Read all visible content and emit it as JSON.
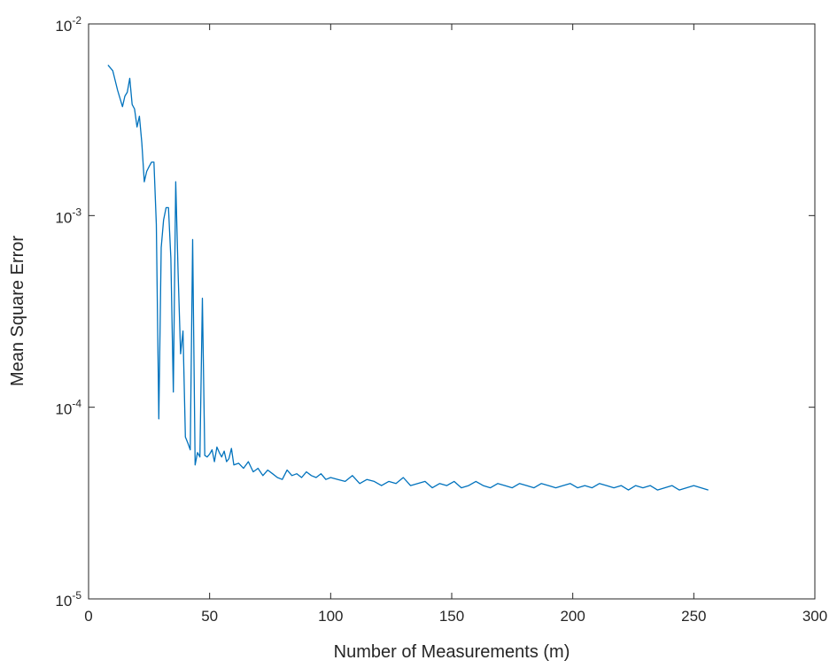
{
  "chart_data": {
    "type": "line",
    "title": "",
    "xlabel": "Number of Measurements (m)",
    "ylabel": "Mean Square Error",
    "xlim": [
      0,
      300
    ],
    "ylim": [
      1e-05,
      0.01
    ],
    "yscale": "log",
    "grid": false,
    "legend": "none",
    "x_ticks": [
      0,
      50,
      100,
      150,
      200,
      250,
      300
    ],
    "y_ticks": [
      {
        "value": 1e-05,
        "base": "10",
        "exp": "-5"
      },
      {
        "value": 0.0001,
        "base": "10",
        "exp": "-4"
      },
      {
        "value": 0.001,
        "base": "10",
        "exp": "-3"
      },
      {
        "value": 0.01,
        "base": "10",
        "exp": "-2"
      }
    ],
    "series": [
      {
        "color": "#0072BD",
        "x": [
          8,
          10,
          12,
          14,
          15,
          16,
          17,
          18,
          19,
          20,
          21,
          22,
          23,
          24,
          25,
          26,
          27,
          28,
          29,
          30,
          31,
          32,
          33,
          34,
          35,
          36,
          37,
          38,
          39,
          40,
          41,
          42,
          43,
          44,
          45,
          46,
          47,
          48,
          49,
          50,
          51,
          52,
          53,
          54,
          55,
          56,
          57,
          58,
          59,
          60,
          62,
          64,
          66,
          68,
          70,
          72,
          74,
          76,
          78,
          80,
          82,
          84,
          86,
          88,
          90,
          92,
          94,
          96,
          98,
          100,
          103,
          106,
          109,
          112,
          115,
          118,
          121,
          124,
          127,
          130,
          133,
          136,
          139,
          142,
          145,
          148,
          151,
          154,
          157,
          160,
          163,
          166,
          169,
          172,
          175,
          178,
          181,
          184,
          187,
          190,
          193,
          196,
          199,
          202,
          205,
          208,
          211,
          214,
          217,
          220,
          223,
          226,
          229,
          232,
          235,
          238,
          241,
          244,
          247,
          250,
          253,
          256
        ],
        "y": [
          0.0061,
          0.0057,
          0.0045,
          0.0037,
          0.0042,
          0.0044,
          0.0052,
          0.0038,
          0.0036,
          0.0029,
          0.0033,
          0.0024,
          0.0015,
          0.0017,
          0.0018,
          0.0019,
          0.0019,
          0.0009,
          8.7e-05,
          0.00068,
          0.00095,
          0.0011,
          0.0011,
          0.0006,
          0.00012,
          0.0015,
          0.0005,
          0.00019,
          0.00025,
          7e-05,
          6.5e-05,
          6e-05,
          0.00075,
          5e-05,
          5.8e-05,
          5.5e-05,
          0.00037,
          5.6e-05,
          5.5e-05,
          5.7e-05,
          6e-05,
          5.2e-05,
          6.2e-05,
          5.8e-05,
          5.5e-05,
          5.9e-05,
          5.2e-05,
          5.4e-05,
          6.1e-05,
          5e-05,
          5.1e-05,
          4.8e-05,
          5.2e-05,
          4.6e-05,
          4.8e-05,
          4.4e-05,
          4.7e-05,
          4.5e-05,
          4.3e-05,
          4.2e-05,
          4.7e-05,
          4.4e-05,
          4.5e-05,
          4.3e-05,
          4.6e-05,
          4.4e-05,
          4.3e-05,
          4.5e-05,
          4.2e-05,
          4.3e-05,
          4.2e-05,
          4.1e-05,
          4.4e-05,
          4e-05,
          4.2e-05,
          4.1e-05,
          3.9e-05,
          4.1e-05,
          4e-05,
          4.3e-05,
          3.9e-05,
          4e-05,
          4.1e-05,
          3.8e-05,
          4e-05,
          3.9e-05,
          4.1e-05,
          3.8e-05,
          3.9e-05,
          4.1e-05,
          3.9e-05,
          3.8e-05,
          4e-05,
          3.9e-05,
          3.8e-05,
          4e-05,
          3.9e-05,
          3.8e-05,
          4e-05,
          3.9e-05,
          3.8e-05,
          3.9e-05,
          4e-05,
          3.8e-05,
          3.9e-05,
          3.8e-05,
          4e-05,
          3.9e-05,
          3.8e-05,
          3.9e-05,
          3.7e-05,
          3.9e-05,
          3.8e-05,
          3.9e-05,
          3.7e-05,
          3.8e-05,
          3.9e-05,
          3.7e-05,
          3.8e-05,
          3.9e-05,
          3.8e-05,
          3.7e-05
        ]
      }
    ]
  }
}
